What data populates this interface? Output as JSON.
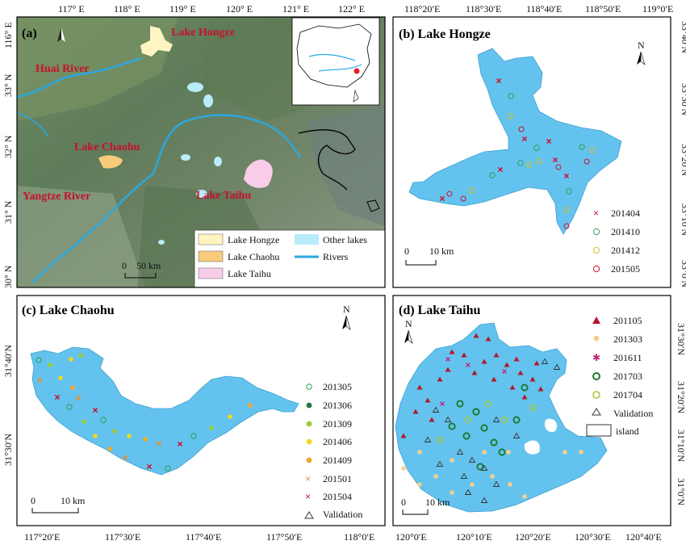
{
  "panels": {
    "a": {
      "title": "(a)",
      "top_ticks": [
        "117° E",
        "118° E",
        "119° E",
        "120° E",
        "121° E",
        "122° E"
      ],
      "left_ticks": [
        "116° E",
        "33° N",
        "32° N",
        "31° N",
        "30° N"
      ],
      "place_labels": {
        "hongze": "Lake Hongze",
        "huai": "Huai River",
        "chaohu": "Lake Chaohu",
        "yangtze": "Yangtze River",
        "taihu": "Lake Taihu"
      },
      "legend": {
        "hongze": "Lake Hongze",
        "other": "Other lakes",
        "chaohu": "Lake Chaohu",
        "rivers": "Rivers",
        "taihu": "Lake Taihu"
      },
      "scale": "0    50 km",
      "colors": {
        "hongze": "#fff5c2",
        "chaohu": "#f7cb7b",
        "taihu": "#f9cdea",
        "other": "#b9ecf9",
        "river": "#2aa8e0"
      }
    },
    "b": {
      "title": "(b) Lake Hongze",
      "top_ticks": [
        "118°20′E",
        "118°30′E",
        "118°40′E",
        "118°50′E",
        "119°0′E"
      ],
      "right_ticks": [
        "33°40′N",
        "33°30′N",
        "33°20′N",
        "33°10′N",
        "33°0′N"
      ],
      "legend": [
        "201404",
        "201410",
        "201412",
        "201505"
      ],
      "scale_zero": "0",
      "scale_label": "10 km",
      "north": "N"
    },
    "c": {
      "title": "(c) Lake Chaohu",
      "bottom_ticks": [
        "117°20′E",
        "117°30′E",
        "117°40′E",
        "117°50′E",
        "118°0′E"
      ],
      "left_ticks": [
        "31°40′N",
        "31°30′N"
      ],
      "legend": [
        "201305",
        "201306",
        "201309",
        "201406",
        "201409",
        "201501",
        "201504",
        "Validation"
      ],
      "scale_zero": "0",
      "scale_label": "10 km",
      "north": "N"
    },
    "d": {
      "title": "(d) Lake Taihu",
      "bottom_ticks": [
        "120°0′E",
        "120°10′E",
        "120°20′E",
        "120°30′E",
        "120°40′E"
      ],
      "right_ticks": [
        "31°30′N",
        "31°20′N",
        "31°10′N",
        "31°0′N"
      ],
      "legend": [
        "201105",
        "201303",
        "201611",
        "201703",
        "201704",
        "Validation",
        "island"
      ],
      "scale_zero": "0",
      "scale_label": "10 km",
      "north": "N"
    }
  }
}
